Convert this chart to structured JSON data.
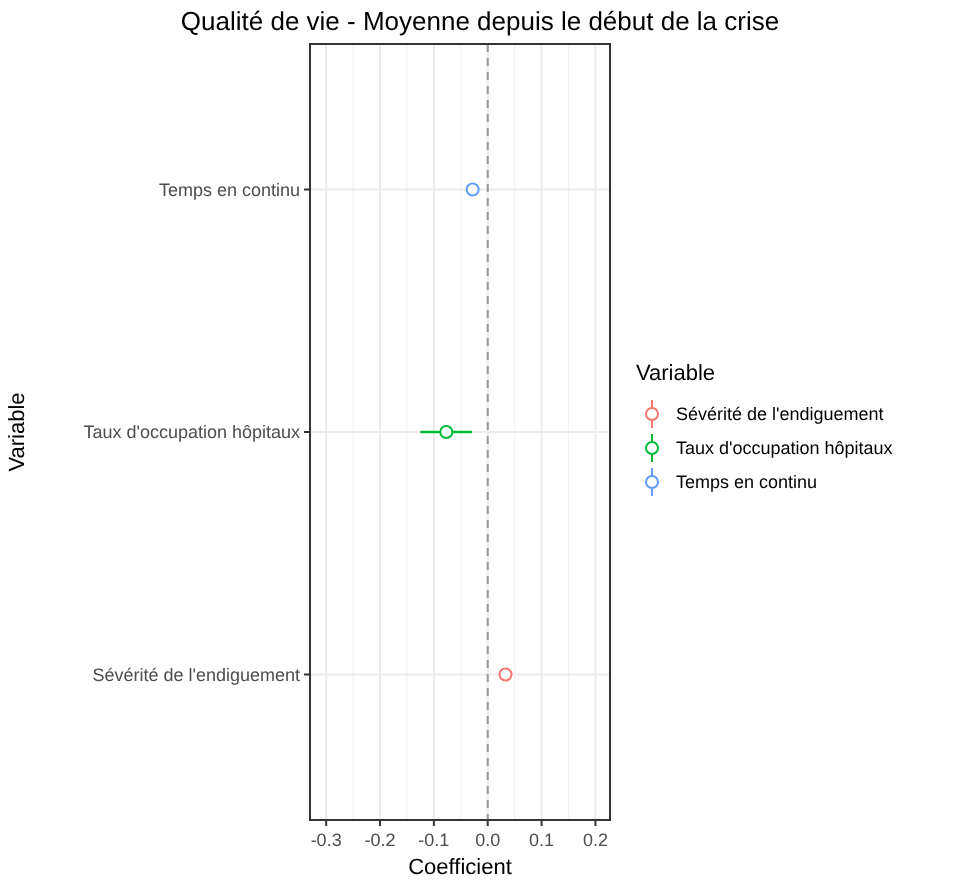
{
  "chart_data": {
    "type": "scatter",
    "title": "Qualité de vie - Moyenne depuis le début de la crise",
    "xlabel": "Coefficient",
    "ylabel": "Variable",
    "legend_title": "Variable",
    "orientation": "horizontal",
    "categories": [
      "Temps en continu",
      "Taux d'occupation hôpitaux",
      "Sévérité de l'endiguement"
    ],
    "xlim": [
      -0.33,
      0.227
    ],
    "xticks": [
      -0.3,
      -0.2,
      -0.1,
      {
        "value": 0,
        "label": "0.0"
      },
      0.1,
      0.2
    ],
    "grid": true,
    "legend": "right",
    "marker": "circle",
    "series": [
      {
        "name": "Sévérité de l'endiguement",
        "color": "#f8766d",
        "values": [
          null,
          null,
          0.033
        ]
      },
      {
        "name": "Taux d'occupation hôpitaux",
        "color": "#00ba38",
        "values": [
          null,
          -0.077,
          null
        ],
        "errors": [
          null,
          [
            -0.125,
            -0.029
          ],
          null
        ]
      },
      {
        "name": "Temps en continu",
        "color": "#619cff",
        "values": [
          -0.028,
          null,
          null
        ]
      }
    ],
    "ref_lines": [
      {
        "axis": "x",
        "value": 0,
        "color": "#999999",
        "line_style": "dashed"
      }
    ]
  }
}
